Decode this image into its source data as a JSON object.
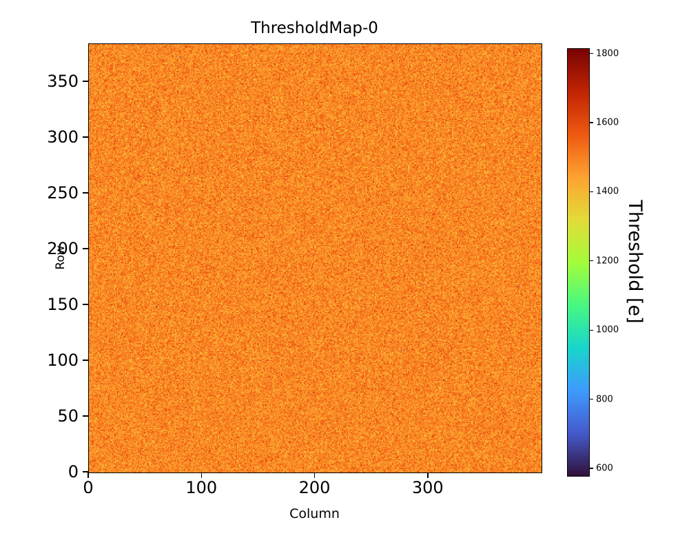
{
  "figure": {
    "background_color": "#ffffff",
    "text_color": "#000000"
  },
  "chart_data": {
    "type": "heatmap",
    "title": "ThresholdMap-0",
    "xlabel": "Column",
    "ylabel": "Row",
    "xlim": [
      0,
      400
    ],
    "ylim": [
      0,
      384
    ],
    "x_ticks": [
      0,
      100,
      200,
      300
    ],
    "y_ticks": [
      0,
      50,
      100,
      150,
      200,
      250,
      300,
      350
    ],
    "grid": false,
    "n_columns": 400,
    "n_rows": 384,
    "values_summary": {
      "distribution": "gaussian-noise",
      "mean": 1490,
      "sigma": 45,
      "units": "e",
      "outlier_low_fraction": 3e-05,
      "description": "Per-pixel threshold map, roughly uniform orange field (~1450-1550 e) with random speckle and a few isolated dark dead pixels"
    },
    "colorbar": {
      "label": "Threshold [e]",
      "ticks": [
        600,
        800,
        1000,
        1200,
        1400,
        1600,
        1800
      ],
      "vmin": 580,
      "vmax": 1815,
      "colormap": "turbo",
      "colormap_stops": [
        "#30123b",
        "#455bcd",
        "#3e9bfe",
        "#18d6cb",
        "#48f882",
        "#a4fc3b",
        "#e2dc38",
        "#fea331",
        "#ef5911",
        "#c22403",
        "#7a0403"
      ]
    },
    "legend": null
  }
}
